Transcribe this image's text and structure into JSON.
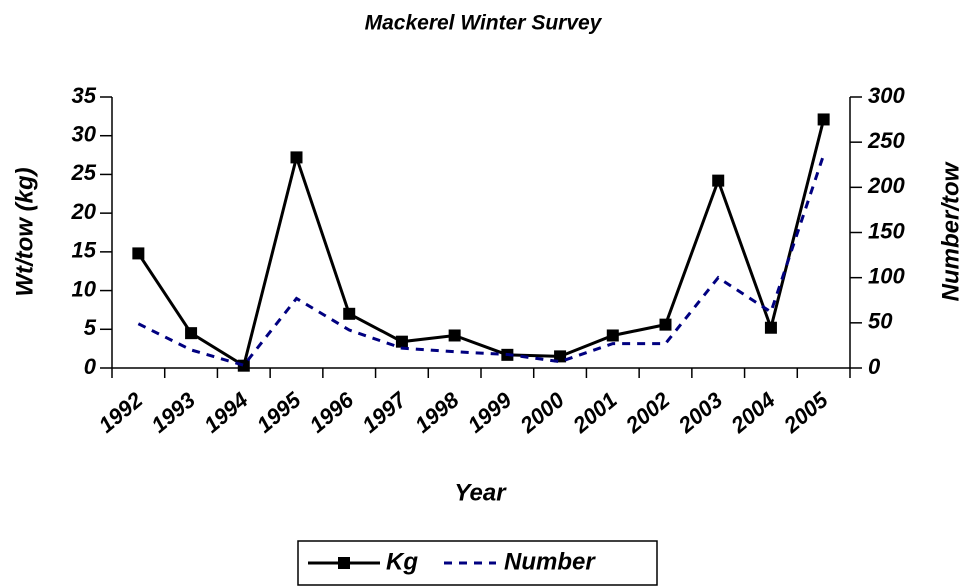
{
  "chart_data": {
    "type": "line",
    "title": "Mackerel Winter Survey",
    "x_label": "Year",
    "y_label": "Wt/tow (kg)",
    "y2_label": "Number/tow",
    "categories": [
      "1992",
      "1993",
      "1994",
      "1995",
      "1996",
      "1997",
      "1998",
      "1999",
      "2000",
      "2001",
      "2002",
      "2003",
      "2004",
      "2005"
    ],
    "series": [
      {
        "name": "Kg",
        "color": "#000000",
        "values": [
          14.8,
          4.5,
          0.3,
          27.2,
          7.0,
          3.4,
          4.2,
          1.7,
          1.5,
          4.2,
          5.6,
          24.2,
          5.2,
          32.1
        ]
      },
      {
        "name": "Number",
        "color": "#000080",
        "axis": "y2",
        "values": [
          49,
          20,
          3,
          77,
          42,
          22,
          18,
          15,
          7,
          27,
          27,
          100,
          62,
          236
        ]
      }
    ],
    "ylim": [
      0,
      35
    ],
    "yticks": [
      0,
      5,
      10,
      15,
      20,
      25,
      30,
      35
    ],
    "y2lim": [
      0,
      300
    ],
    "y2ticks": [
      0,
      50,
      100,
      150,
      200,
      250,
      300
    ],
    "grid": false,
    "legend": "bottom"
  }
}
